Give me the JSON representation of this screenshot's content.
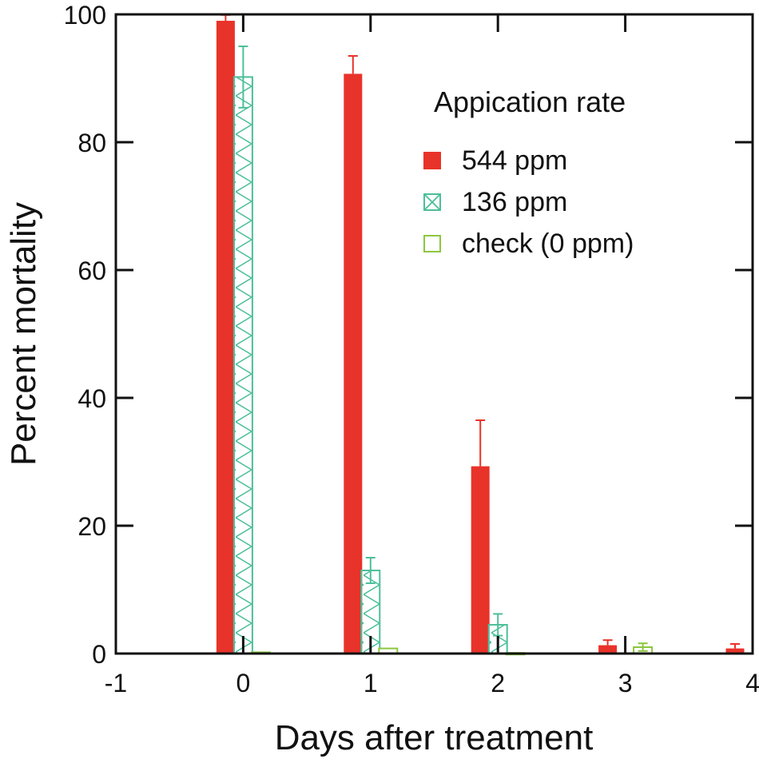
{
  "chart_data": {
    "type": "bar",
    "xlabel": "Days after treatment",
    "ylabel": "Percent mortality",
    "xlim": [
      -1,
      4
    ],
    "ylim": [
      0,
      100
    ],
    "xticks": [
      -1,
      0,
      1,
      2,
      3,
      4
    ],
    "yticks": [
      0,
      20,
      40,
      60,
      80,
      100
    ],
    "x": [
      0,
      1,
      2,
      3,
      4
    ],
    "legend_title": "Appication rate",
    "legend_position": "top-right",
    "series": [
      {
        "name": "544 ppm",
        "color": "#e8332a",
        "style": "solid",
        "values": [
          99.0,
          90.7,
          29.3,
          1.3,
          0.8
        ],
        "errors": [
          0.9,
          2.8,
          7.2,
          0.8,
          0.7
        ]
      },
      {
        "name": "136 ppm",
        "color": "#4dbf9a",
        "style": "crosshatch",
        "values": [
          90.2,
          13.0,
          4.5,
          0.0,
          0.0
        ],
        "errors": [
          4.8,
          2.0,
          1.7,
          0.0,
          0.0
        ]
      },
      {
        "name": "check (0 ppm)",
        "color": "#8cc63f",
        "style": "open",
        "values": [
          0.2,
          0.8,
          0.1,
          1.0,
          0.0
        ],
        "errors": [
          0.0,
          0.0,
          0.0,
          0.6,
          0.0
        ]
      }
    ]
  }
}
